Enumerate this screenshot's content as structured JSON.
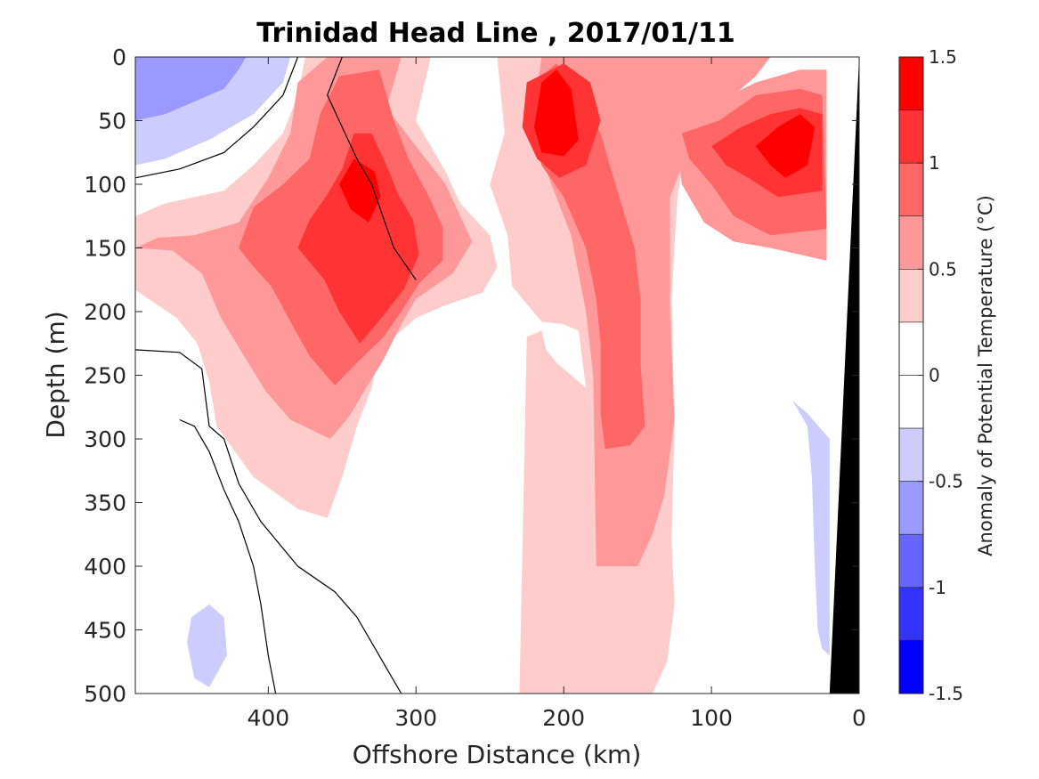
{
  "chart_data": {
    "type": "contourf",
    "title": "Trinidad Head Line , 2017/01/11",
    "xlabel": "Offshore Distance (km)",
    "ylabel": "Depth (m)",
    "colorbar_label": "Anomaly of Potential Temperature (°C)",
    "xlim": [
      490,
      0
    ],
    "ylim": [
      500,
      0
    ],
    "x_reversed": true,
    "y_reversed": true,
    "x_ticks": [
      400,
      300,
      200,
      100,
      0
    ],
    "y_ticks": [
      0,
      50,
      100,
      150,
      200,
      250,
      300,
      350,
      400,
      450,
      500
    ],
    "colorbar_range": [
      -1.5,
      1.5
    ],
    "colorbar_ticks": [
      -1.5,
      -1,
      -0.5,
      0,
      0.5,
      1,
      1.5
    ],
    "colorbar_tick_labels": [
      "-1.5",
      "-1",
      "-0.5",
      "0",
      "0.5",
      "1",
      "1.5"
    ],
    "levels": [
      {
        "range": [
          1.25,
          1.5
        ],
        "color": "#ff0000"
      },
      {
        "range": [
          1.0,
          1.25
        ],
        "color": "#ff3333"
      },
      {
        "range": [
          0.75,
          1.0
        ],
        "color": "#ff6666"
      },
      {
        "range": [
          0.5,
          0.75
        ],
        "color": "#ff9999"
      },
      {
        "range": [
          0.25,
          0.5
        ],
        "color": "#ffcccc"
      },
      {
        "range": [
          0.0,
          0.25
        ],
        "color": "#ffffff"
      },
      {
        "range": [
          -0.25,
          0.0
        ],
        "color": "#ffffff"
      },
      {
        "range": [
          -0.5,
          -0.25
        ],
        "color": "#ccccff"
      },
      {
        "range": [
          -0.75,
          -0.5
        ],
        "color": "#9999ff"
      },
      {
        "range": [
          -1.0,
          -0.75
        ],
        "color": "#6666ff"
      },
      {
        "range": [
          -1.25,
          -1.0
        ],
        "color": "#3333ff"
      },
      {
        "range": [
          -1.5,
          -1.25
        ],
        "color": "#0000ff"
      }
    ],
    "features": [
      {
        "name": "warm-core-offshore",
        "level": 4,
        "poly": [
          [
            490,
            125
          ],
          [
            470,
            115
          ],
          [
            430,
            105
          ],
          [
            410,
            85
          ],
          [
            390,
            60
          ],
          [
            380,
            30
          ],
          [
            375,
            0
          ],
          [
            290,
            0
          ],
          [
            300,
            50
          ],
          [
            280,
            90
          ],
          [
            270,
            115
          ],
          [
            250,
            140
          ],
          [
            245,
            165
          ],
          [
            255,
            185
          ],
          [
            280,
            195
          ],
          [
            300,
            205
          ],
          [
            325,
            230
          ],
          [
            330,
            260
          ],
          [
            340,
            290
          ],
          [
            350,
            330
          ],
          [
            360,
            362
          ],
          [
            380,
            355
          ],
          [
            410,
            330
          ],
          [
            435,
            290
          ],
          [
            440,
            255
          ],
          [
            448,
            225
          ],
          [
            462,
            205
          ],
          [
            490,
            183
          ]
        ]
      },
      {
        "name": "warm-core-offshore",
        "level": 3,
        "poly": [
          [
            490,
            150
          ],
          [
            475,
            142
          ],
          [
            450,
            140
          ],
          [
            420,
            130
          ],
          [
            400,
            95
          ],
          [
            385,
            60
          ],
          [
            380,
            20
          ],
          [
            360,
            0
          ],
          [
            310,
            0
          ],
          [
            320,
            40
          ],
          [
            300,
            70
          ],
          [
            280,
            100
          ],
          [
            270,
            125
          ],
          [
            262,
            145
          ],
          [
            275,
            170
          ],
          [
            300,
            190
          ],
          [
            310,
            210
          ],
          [
            322,
            238
          ],
          [
            335,
            262
          ],
          [
            345,
            282
          ],
          [
            358,
            300
          ],
          [
            385,
            285
          ],
          [
            402,
            262
          ],
          [
            418,
            232
          ],
          [
            432,
            205
          ],
          [
            445,
            170
          ],
          [
            465,
            152
          ]
        ]
      },
      {
        "name": "warm-core-offshore",
        "level": 2,
        "poly": [
          [
            420,
            150
          ],
          [
            410,
            118
          ],
          [
            390,
            100
          ],
          [
            372,
            80
          ],
          [
            365,
            45
          ],
          [
            352,
            15
          ],
          [
            325,
            10
          ],
          [
            315,
            50
          ],
          [
            305,
            80
          ],
          [
            292,
            108
          ],
          [
            282,
            133
          ],
          [
            282,
            160
          ],
          [
            298,
            178
          ],
          [
            310,
            200
          ],
          [
            322,
            220
          ],
          [
            338,
            238
          ],
          [
            355,
            258
          ],
          [
            372,
            235
          ],
          [
            385,
            208
          ],
          [
            398,
            180
          ],
          [
            412,
            162
          ]
        ]
      },
      {
        "name": "warm-core-offshore",
        "level": 1,
        "poly": [
          [
            380,
            150
          ],
          [
            372,
            128
          ],
          [
            360,
            108
          ],
          [
            350,
            88
          ],
          [
            342,
            60
          ],
          [
            330,
            60
          ],
          [
            320,
            85
          ],
          [
            312,
            108
          ],
          [
            302,
            128
          ],
          [
            298,
            155
          ],
          [
            308,
            182
          ],
          [
            322,
            203
          ],
          [
            338,
            225
          ],
          [
            352,
            200
          ],
          [
            362,
            175
          ]
        ]
      },
      {
        "name": "warm-core-offshore",
        "level": 0,
        "poly": [
          [
            352,
            100
          ],
          [
            342,
            80
          ],
          [
            328,
            90
          ],
          [
            324,
            110
          ],
          [
            332,
            130
          ],
          [
            344,
            120
          ]
        ]
      },
      {
        "name": "warm-core-central",
        "level": 4,
        "poly": [
          [
            245,
            0
          ],
          [
            240,
            60
          ],
          [
            250,
            100
          ],
          [
            238,
            140
          ],
          [
            235,
            180
          ],
          [
            215,
            208
          ],
          [
            200,
            210
          ],
          [
            190,
            215
          ],
          [
            185,
            260
          ],
          [
            205,
            240
          ],
          [
            212,
            230
          ],
          [
            215,
            215
          ],
          [
            225,
            220
          ],
          [
            230,
            500
          ],
          [
            140,
            500
          ],
          [
            130,
            475
          ],
          [
            125,
            430
          ],
          [
            127,
            380
          ],
          [
            125,
            290
          ],
          [
            127,
            190
          ],
          [
            123,
            110
          ],
          [
            115,
            50
          ],
          [
            100,
            30
          ],
          [
            80,
            5
          ],
          [
            60,
            0
          ]
        ]
      },
      {
        "name": "warm-core-central",
        "level": 3,
        "poly": [
          [
            215,
            0
          ],
          [
            220,
            40
          ],
          [
            215,
            80
          ],
          [
            195,
            140
          ],
          [
            190,
            170
          ],
          [
            185,
            200
          ],
          [
            180,
            250
          ],
          [
            178,
            400
          ],
          [
            150,
            400
          ],
          [
            140,
            375
          ],
          [
            132,
            345
          ],
          [
            125,
            285
          ],
          [
            128,
            200
          ],
          [
            128,
            110
          ],
          [
            110,
            55
          ],
          [
            70,
            15
          ],
          [
            60,
            0
          ]
        ]
      },
      {
        "name": "warm-core-central",
        "level": 2,
        "poly": [
          [
            220,
            20
          ],
          [
            220,
            55
          ],
          [
            215,
            85
          ],
          [
            200,
            110
          ],
          [
            185,
            150
          ],
          [
            178,
            190
          ],
          [
            175,
            225
          ],
          [
            175,
            280
          ],
          [
            172,
            308
          ],
          [
            155,
            305
          ],
          [
            145,
            290
          ],
          [
            148,
            240
          ],
          [
            148,
            190
          ],
          [
            152,
            150
          ],
          [
            165,
            100
          ],
          [
            175,
            60
          ],
          [
            195,
            20
          ],
          [
            205,
            5
          ]
        ]
      },
      {
        "name": "warm-core-central",
        "level": 1,
        "poly": [
          [
            225,
            20
          ],
          [
            228,
            55
          ],
          [
            218,
            80
          ],
          [
            203,
            95
          ],
          [
            185,
            85
          ],
          [
            175,
            50
          ],
          [
            182,
            20
          ],
          [
            200,
            5
          ]
        ]
      },
      {
        "name": "warm-core-central",
        "level": 0,
        "poly": [
          [
            215,
            20
          ],
          [
            220,
            55
          ],
          [
            215,
            75
          ],
          [
            200,
            78
          ],
          [
            190,
            65
          ],
          [
            195,
            25
          ],
          [
            205,
            10
          ]
        ]
      },
      {
        "name": "warm-core-coastal",
        "level": 3,
        "poly": [
          [
            125,
            55
          ],
          [
            105,
            40
          ],
          [
            70,
            20
          ],
          [
            40,
            10
          ],
          [
            22,
            10
          ],
          [
            22,
            160
          ],
          [
            60,
            150
          ],
          [
            85,
            145
          ],
          [
            105,
            130
          ],
          [
            120,
            100
          ]
        ]
      },
      {
        "name": "warm-core-coastal",
        "level": 2,
        "poly": [
          [
            120,
            60
          ],
          [
            95,
            50
          ],
          [
            70,
            30
          ],
          [
            40,
            25
          ],
          [
            25,
            30
          ],
          [
            22,
            135
          ],
          [
            60,
            140
          ],
          [
            85,
            125
          ],
          [
            100,
            100
          ],
          [
            115,
            80
          ]
        ]
      },
      {
        "name": "warm-core-coastal",
        "level": 1,
        "poly": [
          [
            100,
            70
          ],
          [
            80,
            55
          ],
          [
            60,
            45
          ],
          [
            40,
            40
          ],
          [
            25,
            45
          ],
          [
            25,
            105
          ],
          [
            55,
            110
          ],
          [
            75,
            95
          ],
          [
            90,
            85
          ]
        ]
      },
      {
        "name": "warm-core-coastal",
        "level": 0,
        "poly": [
          [
            70,
            70
          ],
          [
            55,
            55
          ],
          [
            40,
            45
          ],
          [
            30,
            55
          ],
          [
            35,
            85
          ],
          [
            50,
            95
          ],
          [
            60,
            85
          ]
        ]
      },
      {
        "name": "cold-patch-northwest",
        "level": 7,
        "poly": [
          [
            490,
            0
          ],
          [
            490,
            85
          ],
          [
            470,
            80
          ],
          [
            440,
            65
          ],
          [
            410,
            45
          ],
          [
            390,
            20
          ],
          [
            385,
            0
          ]
        ]
      },
      {
        "name": "cold-patch-northwest",
        "level": 8,
        "poly": [
          [
            490,
            0
          ],
          [
            490,
            50
          ],
          [
            470,
            45
          ],
          [
            450,
            35
          ],
          [
            430,
            25
          ],
          [
            420,
            10
          ],
          [
            415,
            0
          ]
        ]
      },
      {
        "name": "cold-patch-southwest",
        "level": 7,
        "poly": [
          [
            440,
            430
          ],
          [
            430,
            440
          ],
          [
            428,
            470
          ],
          [
            440,
            495
          ],
          [
            450,
            488
          ],
          [
            455,
            460
          ],
          [
            452,
            440
          ]
        ]
      },
      {
        "name": "cold-patch-nearshore",
        "level": 7,
        "poly": [
          [
            45,
            270
          ],
          [
            35,
            290
          ],
          [
            32,
            330
          ],
          [
            30,
            400
          ],
          [
            28,
            450
          ],
          [
            25,
            465
          ],
          [
            20,
            470
          ],
          [
            20,
            300
          ],
          [
            35,
            280
          ]
        ]
      }
    ],
    "zero_contours": [
      [
        [
          490,
          95
        ],
        [
          460,
          88
        ],
        [
          430,
          75
        ],
        [
          410,
          55
        ],
        [
          390,
          30
        ],
        [
          380,
          0
        ]
      ],
      [
        [
          490,
          230
        ],
        [
          460,
          232
        ],
        [
          445,
          245
        ],
        [
          440,
          290
        ],
        [
          430,
          300
        ],
        [
          420,
          335
        ],
        [
          405,
          365
        ],
        [
          380,
          400
        ],
        [
          355,
          420
        ],
        [
          340,
          440
        ],
        [
          330,
          460
        ],
        [
          320,
          480
        ],
        [
          310,
          500
        ]
      ],
      [
        [
          460,
          285
        ],
        [
          450,
          290
        ],
        [
          440,
          310
        ],
        [
          430,
          340
        ],
        [
          420,
          365
        ],
        [
          410,
          400
        ],
        [
          405,
          430
        ],
        [
          400,
          470
        ],
        [
          395,
          500
        ]
      ],
      [
        [
          350,
          0
        ],
        [
          360,
          30
        ],
        [
          350,
          55
        ],
        [
          340,
          80
        ],
        [
          330,
          100
        ],
        [
          315,
          150
        ],
        [
          300,
          175
        ]
      ]
    ],
    "land_mask": [
      [
        0,
        0
      ],
      [
        20,
        500
      ],
      [
        0,
        500
      ]
    ]
  }
}
